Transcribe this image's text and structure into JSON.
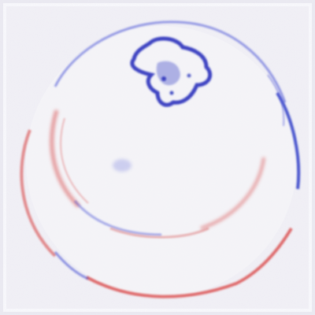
{
  "image": {
    "kind": "saliency-heatmap",
    "subject": "fruit-top-view",
    "palette": {
      "background": "#ecebf2",
      "positive": "#d23b3b",
      "negative": "#2631c8",
      "frame": "#f7f7fa"
    }
  }
}
